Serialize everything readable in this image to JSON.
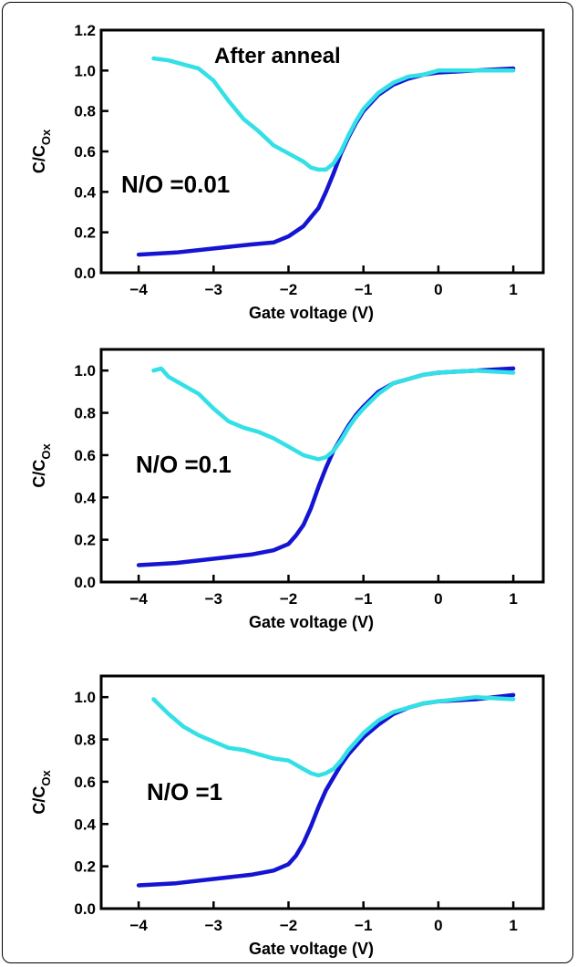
{
  "chart_data": [
    {
      "type": "line",
      "title": "After anneal",
      "annotation": "N/O =0.01",
      "xlabel": "Gate voltage (V)",
      "ylabel_main": "C/C",
      "ylabel_sub": "Ox",
      "xlim": [
        -4.5,
        1.4
      ],
      "ylim": [
        0.0,
        1.2
      ],
      "xticks": [
        -4,
        -3,
        -2,
        -1,
        0,
        1
      ],
      "xtick_labels": [
        "−4",
        "−3",
        "−2",
        "−1",
        "0",
        "1"
      ],
      "yticks": [
        0.0,
        0.2,
        0.4,
        0.6,
        0.8,
        1.0,
        1.2
      ],
      "ytick_labels": [
        "0.0",
        "0.2",
        "0.4",
        "0.6",
        "0.8",
        "1.0",
        "1.2"
      ],
      "series": [
        {
          "color": "#1414d2",
          "x": [
            -4.0,
            -3.5,
            -3.0,
            -2.5,
            -2.2,
            -2.0,
            -1.8,
            -1.6,
            -1.5,
            -1.4,
            -1.3,
            -1.2,
            -1.1,
            -1.0,
            -0.8,
            -0.6,
            -0.4,
            -0.2,
            0.0,
            0.5,
            1.0
          ],
          "y": [
            0.09,
            0.1,
            0.12,
            0.14,
            0.15,
            0.18,
            0.23,
            0.32,
            0.4,
            0.49,
            0.59,
            0.67,
            0.74,
            0.8,
            0.88,
            0.93,
            0.96,
            0.98,
            0.99,
            1.0,
            1.01
          ]
        },
        {
          "color": "#33e0e6",
          "x": [
            -3.8,
            -3.6,
            -3.4,
            -3.2,
            -3.0,
            -2.8,
            -2.6,
            -2.4,
            -2.2,
            -2.0,
            -1.8,
            -1.7,
            -1.6,
            -1.5,
            -1.4,
            -1.3,
            -1.2,
            -1.1,
            -1.0,
            -0.8,
            -0.6,
            -0.4,
            -0.2,
            0.0,
            0.5,
            1.0
          ],
          "y": [
            1.06,
            1.05,
            1.03,
            1.01,
            0.95,
            0.85,
            0.76,
            0.7,
            0.63,
            0.59,
            0.55,
            0.52,
            0.51,
            0.51,
            0.54,
            0.6,
            0.68,
            0.75,
            0.81,
            0.89,
            0.94,
            0.97,
            0.98,
            1.0,
            1.0,
            1.0
          ]
        }
      ]
    },
    {
      "type": "line",
      "title": "",
      "annotation": "N/O =0.1",
      "xlabel": "Gate voltage (V)",
      "ylabel_main": "C/C",
      "ylabel_sub": "Ox",
      "xlim": [
        -4.5,
        1.4
      ],
      "ylim": [
        0.0,
        1.1
      ],
      "xticks": [
        -4,
        -3,
        -2,
        -1,
        0,
        1
      ],
      "xtick_labels": [
        "−4",
        "−3",
        "−2",
        "−1",
        "0",
        "1"
      ],
      "yticks": [
        0.0,
        0.2,
        0.4,
        0.6,
        0.8,
        1.0
      ],
      "ytick_labels": [
        "0.0",
        "0.2",
        "0.4",
        "0.6",
        "0.8",
        "1.0"
      ],
      "series": [
        {
          "color": "#1414d2",
          "x": [
            -4.0,
            -3.5,
            -3.0,
            -2.5,
            -2.2,
            -2.0,
            -1.9,
            -1.8,
            -1.7,
            -1.6,
            -1.5,
            -1.4,
            -1.3,
            -1.2,
            -1.1,
            -1.0,
            -0.8,
            -0.6,
            -0.4,
            -0.2,
            0.0,
            0.5,
            1.0
          ],
          "y": [
            0.08,
            0.09,
            0.11,
            0.13,
            0.15,
            0.18,
            0.22,
            0.27,
            0.35,
            0.45,
            0.54,
            0.62,
            0.68,
            0.74,
            0.79,
            0.83,
            0.9,
            0.94,
            0.96,
            0.98,
            0.99,
            1.0,
            1.01
          ]
        },
        {
          "color": "#33e0e6",
          "x": [
            -3.8,
            -3.7,
            -3.6,
            -3.4,
            -3.2,
            -3.0,
            -2.8,
            -2.6,
            -2.4,
            -2.2,
            -2.0,
            -1.8,
            -1.6,
            -1.5,
            -1.4,
            -1.3,
            -1.2,
            -1.1,
            -1.0,
            -0.8,
            -0.6,
            -0.4,
            -0.2,
            0.0,
            0.5,
            1.0
          ],
          "y": [
            1.0,
            1.01,
            0.97,
            0.93,
            0.89,
            0.82,
            0.76,
            0.73,
            0.71,
            0.68,
            0.64,
            0.6,
            0.58,
            0.59,
            0.62,
            0.67,
            0.73,
            0.78,
            0.82,
            0.89,
            0.94,
            0.96,
            0.98,
            0.99,
            1.0,
            0.99
          ]
        }
      ]
    },
    {
      "type": "line",
      "title": "",
      "annotation": "N/O =1",
      "xlabel": "Gate voltage (V)",
      "ylabel_main": "C/C",
      "ylabel_sub": "Ox",
      "xlim": [
        -4.5,
        1.4
      ],
      "ylim": [
        0.0,
        1.1
      ],
      "xticks": [
        -4,
        -3,
        -2,
        -1,
        0,
        1
      ],
      "xtick_labels": [
        "−4",
        "−3",
        "−2",
        "−1",
        "0",
        "1"
      ],
      "yticks": [
        0.0,
        0.2,
        0.4,
        0.6,
        0.8,
        1.0
      ],
      "ytick_labels": [
        "0.0",
        "0.2",
        "0.4",
        "0.6",
        "0.8",
        "1.0"
      ],
      "series": [
        {
          "color": "#1414d2",
          "x": [
            -4.0,
            -3.5,
            -3.0,
            -2.5,
            -2.2,
            -2.0,
            -1.9,
            -1.8,
            -1.7,
            -1.6,
            -1.5,
            -1.4,
            -1.3,
            -1.2,
            -1.1,
            -1.0,
            -0.8,
            -0.6,
            -0.4,
            -0.2,
            0.0,
            0.5,
            1.0
          ],
          "y": [
            0.11,
            0.12,
            0.14,
            0.16,
            0.18,
            0.21,
            0.25,
            0.31,
            0.39,
            0.48,
            0.56,
            0.62,
            0.68,
            0.73,
            0.77,
            0.81,
            0.87,
            0.92,
            0.95,
            0.97,
            0.98,
            0.99,
            1.01
          ]
        },
        {
          "color": "#33e0e6",
          "x": [
            -3.8,
            -3.6,
            -3.4,
            -3.2,
            -3.0,
            -2.8,
            -2.6,
            -2.4,
            -2.2,
            -2.0,
            -1.8,
            -1.7,
            -1.6,
            -1.5,
            -1.4,
            -1.3,
            -1.2,
            -1.1,
            -1.0,
            -0.8,
            -0.6,
            -0.4,
            -0.2,
            0.0,
            0.5,
            1.0
          ],
          "y": [
            0.99,
            0.92,
            0.86,
            0.82,
            0.79,
            0.76,
            0.75,
            0.73,
            0.71,
            0.7,
            0.66,
            0.64,
            0.63,
            0.64,
            0.66,
            0.7,
            0.75,
            0.79,
            0.83,
            0.89,
            0.93,
            0.95,
            0.97,
            0.98,
            1.0,
            0.99
          ]
        }
      ]
    }
  ]
}
